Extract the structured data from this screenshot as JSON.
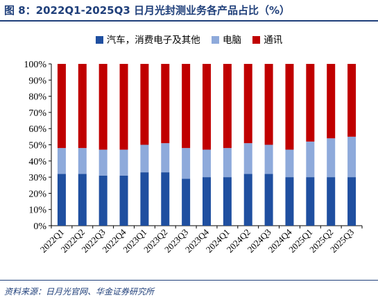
{
  "figure": {
    "title": "图 8：2022Q1-2025Q3 日月光封测业务各产品占比（%）",
    "source": "资料来源：日月光官网、华金证券研究所"
  },
  "colors": {
    "auto_consumer": "#1f4fa0",
    "computing": "#8eaadb",
    "comms": "#c00000",
    "title": "#1f3f7a"
  },
  "chart_data": {
    "type": "bar",
    "stacked": true,
    "categories": [
      "2022Q1",
      "2022Q2",
      "2022Q3",
      "2022Q4",
      "2023Q1",
      "2023Q2",
      "2023Q3",
      "2023Q4",
      "2024Q1",
      "2024Q2",
      "2024Q3",
      "2024Q4",
      "2025Q1",
      "2025Q2",
      "2025Q3"
    ],
    "series": [
      {
        "name": "汽车，消费电子及其他",
        "color": "#1f4fa0",
        "values": [
          32,
          32,
          31,
          31,
          33,
          33,
          29,
          30,
          30,
          32,
          32,
          30,
          30,
          30,
          30
        ]
      },
      {
        "name": "电脑",
        "color": "#8eaadb",
        "values": [
          16,
          16,
          16,
          16,
          17,
          18,
          19,
          17,
          18,
          19,
          18,
          17,
          22,
          24,
          25
        ]
      },
      {
        "name": "通讯",
        "color": "#c00000",
        "values": [
          52,
          52,
          53,
          53,
          50,
          49,
          52,
          53,
          52,
          49,
          50,
          53,
          48,
          46,
          45
        ]
      }
    ],
    "ylim": [
      0,
      100
    ],
    "yticks": [
      "0%",
      "10%",
      "20%",
      "30%",
      "40%",
      "50%",
      "60%",
      "70%",
      "80%",
      "90%",
      "100%"
    ],
    "legend_position": "top",
    "grid": false
  }
}
